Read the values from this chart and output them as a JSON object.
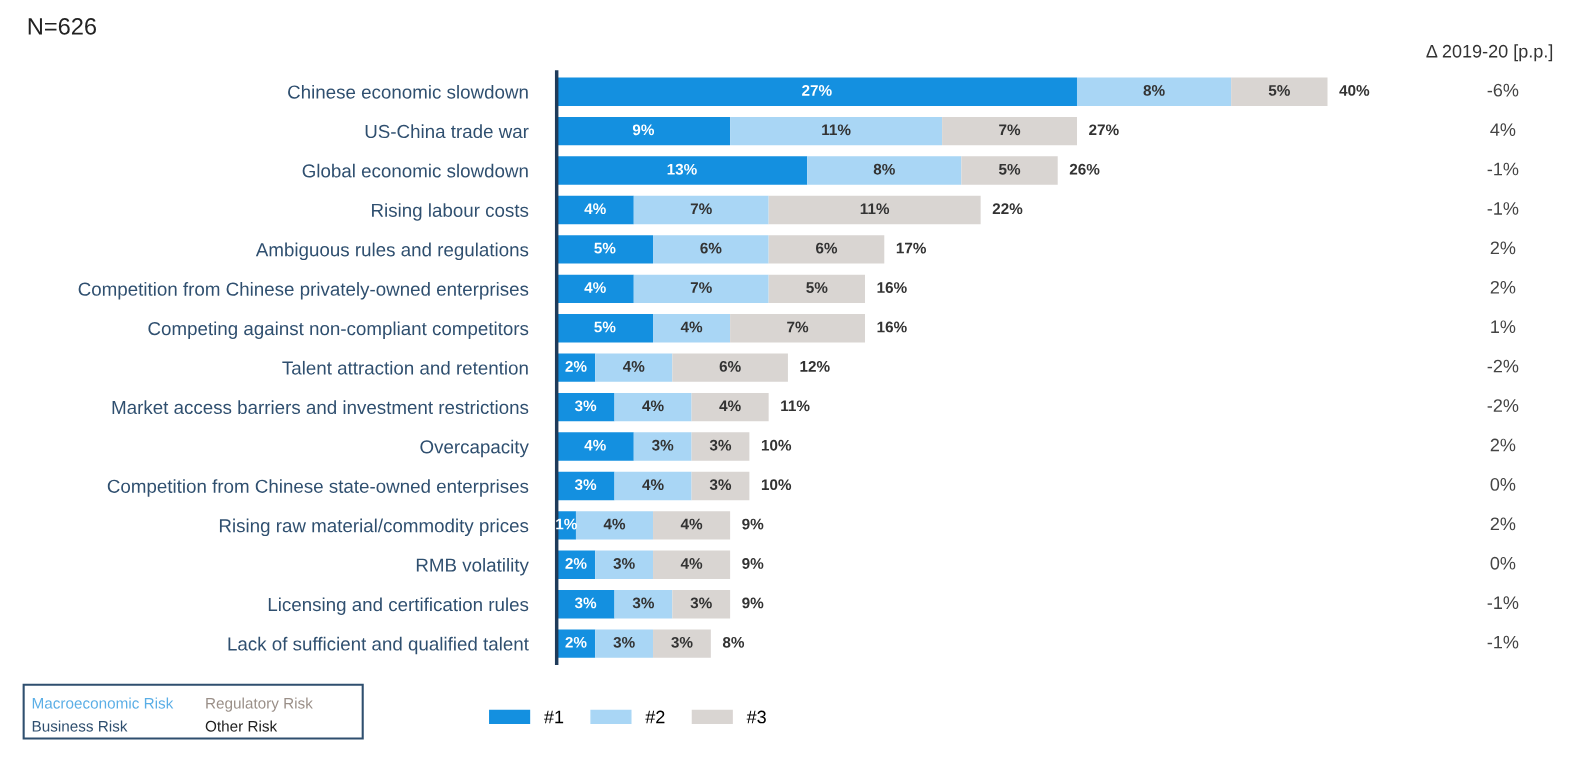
{
  "chart_data": {
    "type": "bar",
    "orientation": "horizontal",
    "stacked": true,
    "tick_labels": "y",
    "grid": false,
    "legend": "bottom",
    "categories": [
      "Chinese economic slowdown",
      "US-China trade war",
      "Global economic slowdown",
      "Rising labour costs",
      "Ambiguous rules and regulations",
      "Competition from Chinese privately-owned enterprises",
      "Competing against non-compliant competitors",
      "Talent attraction and retention",
      "Market access barriers and investment restrictions",
      "Overcapacity",
      "Competition from Chinese state-owned enterprises",
      "Rising raw material/commodity prices",
      "RMB volatility",
      "Licensing and certification rules",
      "Lack of sufficient and qualified talent"
    ],
    "series": [
      {
        "name": "#1",
        "color": "#1490e0",
        "values": [
          27,
          9,
          13,
          4,
          5,
          4,
          5,
          2,
          3,
          4,
          3,
          1,
          2,
          3,
          2
        ],
        "value_labels": [
          "27%",
          "9%",
          "13%",
          "4%",
          "5%",
          "4%",
          "5%",
          "2%",
          "3%",
          "4%",
          "3%",
          "1%",
          "2%",
          "3%",
          "2%"
        ]
      },
      {
        "name": "#2",
        "color": "#a9d6f5",
        "values": [
          8,
          11,
          8,
          7,
          6,
          7,
          4,
          4,
          4,
          3,
          4,
          4,
          3,
          3,
          3
        ],
        "value_labels": [
          "8%",
          "11%",
          "8%",
          "7%",
          "6%",
          "7%",
          "4%",
          "4%",
          "4%",
          "3%",
          "4%",
          "4%",
          "3%",
          "3%",
          "3%"
        ]
      },
      {
        "name": "#3",
        "color": "#d9d5d2",
        "values": [
          5,
          7,
          5,
          11,
          6,
          5,
          7,
          6,
          4,
          3,
          3,
          4,
          4,
          3,
          3
        ],
        "value_labels": [
          "5%",
          "7%",
          "5%",
          "11%",
          "6%",
          "5%",
          "7%",
          "6%",
          "4%",
          "3%",
          "3%",
          "4%",
          "4%",
          "3%",
          "3%"
        ]
      }
    ],
    "totals": [
      "40%",
      "27%",
      "26%",
      "22%",
      "17%",
      "16%",
      "16%",
      "12%",
      "11%",
      "10%",
      "10%",
      "9%",
      "9%",
      "9%",
      "8%"
    ],
    "annotations": [
      "N=626",
      "Δ 2019-20 [p.p.]",
      "-6%",
      "4%",
      "-1%",
      "-1%",
      "2%",
      "2%",
      "1%",
      "-2%",
      "-2%",
      "2%",
      "0%",
      "2%",
      "0%",
      "-1%",
      "-1%",
      "Macroeconomic Risk",
      "Regulatory Risk",
      "Business Risk",
      "Other Risk"
    ]
  }
}
